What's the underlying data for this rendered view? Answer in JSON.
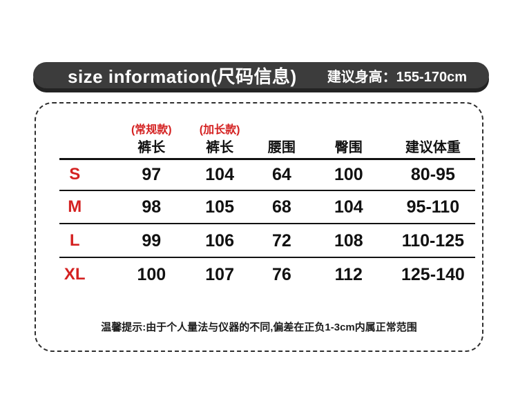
{
  "header": {
    "title": "size information(尺码信息)",
    "height_label": "建议身高：155-170cm"
  },
  "chart_data": {
    "type": "table",
    "title": "size information(尺码信息)",
    "height_recommendation": "建议身高：155-170cm",
    "columns": [
      {
        "sub": "(常规款)",
        "label": "裤长"
      },
      {
        "sub": "(加长款)",
        "label": "裤长"
      },
      {
        "sub": "",
        "label": "腰围"
      },
      {
        "sub": "",
        "label": "臀围"
      },
      {
        "sub": "",
        "label": "建议体重"
      }
    ],
    "sizes": [
      "S",
      "M",
      "L",
      "XL"
    ],
    "rows": [
      [
        "97",
        "104",
        "64",
        "100",
        "80-95"
      ],
      [
        "98",
        "105",
        "68",
        "104",
        "95-110"
      ],
      [
        "99",
        "106",
        "72",
        "108",
        "110-125"
      ],
      [
        "100",
        "107",
        "76",
        "112",
        "125-140"
      ]
    ],
    "note": "温馨提示:由于个人量法与仪器的不同,偏差在正负1-3cm内属正常范围"
  },
  "note": "温馨提示:由于个人量法与仪器的不同,偏差在正负1-3cm内属正常范围",
  "colors": {
    "accent_red": "#d42121",
    "bar_gray": "#3c3c3c",
    "bar_shadow": "#232323"
  }
}
